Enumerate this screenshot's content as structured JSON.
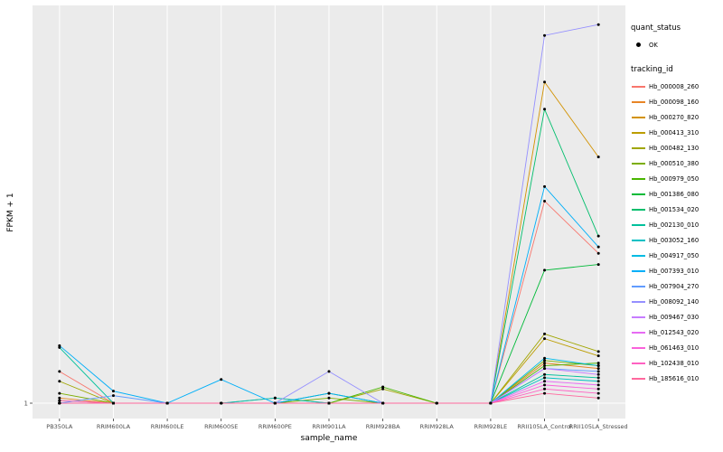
{
  "figure": {
    "background": "#FFFFFF",
    "panel_bg": "#EBEBEB",
    "grid_color": "#FFFFFF",
    "tick_color": "#333333",
    "tick_label_color": "#4D4D4D",
    "point_color": "#000000"
  },
  "axes": {
    "x_label": "sample_name",
    "y_label": "FPKM + 1"
  },
  "legend": {
    "quant_status_title": "quant_status",
    "ok_label": "OK",
    "ok_symbol_color": "#000000",
    "tracking_id_title": "tracking_id"
  },
  "chart_data": {
    "type": "line",
    "title": "",
    "xlabel": "sample_name",
    "ylabel": "FPKM + 1",
    "y_scale": "log10",
    "y_ticks": [
      1
    ],
    "ylim": [
      1,
      1200
    ],
    "grid": "vertical white gridlines per category on grey panel",
    "legend_position": "right",
    "quant_status_all_points": "OK",
    "categories": [
      "PB350LA",
      "RRIM600LA",
      "RRIM600LE",
      "RRIM600SE",
      "RRIM600PE",
      "RRIM901LA",
      "RRIM928BA",
      "RRIM928LA",
      "RRIM928LE",
      "RRII105LA_Control",
      "RRII105LA_Stressed"
    ],
    "series": [
      {
        "name": "Hb_000008_260",
        "color": "#F8766D",
        "values": [
          1.8,
          1,
          1,
          1,
          1,
          1,
          1,
          1,
          1,
          42,
          16
        ]
      },
      {
        "name": "Hb_000098_160",
        "color": "#E88526",
        "values": [
          1.1,
          1,
          1,
          1,
          1,
          1,
          1,
          1,
          1,
          2.1,
          1.9
        ]
      },
      {
        "name": "Hb_000270_820",
        "color": "#D39200",
        "values": [
          1,
          1,
          1,
          1,
          1,
          1,
          1,
          1,
          1,
          380,
          95
        ]
      },
      {
        "name": "Hb_000413_310",
        "color": "#BC9D00",
        "values": [
          1.05,
          1,
          1,
          1,
          1,
          1,
          1,
          1,
          1,
          3.3,
          2.4
        ]
      },
      {
        "name": "Hb_000482_130",
        "color": "#A0A600",
        "values": [
          1.5,
          1,
          1,
          1,
          1.1,
          1,
          1.3,
          1,
          1,
          3.6,
          2.6
        ]
      },
      {
        "name": "Hb_000510_380",
        "color": "#7CAE00",
        "values": [
          1.2,
          1,
          1,
          1,
          1,
          1.1,
          1,
          1,
          1,
          2.2,
          2.0
        ]
      },
      {
        "name": "Hb_000979_050",
        "color": "#49B500",
        "values": [
          1,
          1,
          1,
          1,
          1,
          1,
          1.35,
          1,
          1,
          2.0,
          2.1
        ]
      },
      {
        "name": "Hb_001386_080",
        "color": "#00BA38",
        "values": [
          1,
          1,
          1,
          1,
          1,
          1.2,
          1,
          1,
          1,
          11.7,
          13
        ]
      },
      {
        "name": "Hb_001534_020",
        "color": "#00BE6C",
        "values": [
          1,
          1,
          1,
          1,
          1,
          1,
          1,
          1,
          1,
          230,
          22
        ]
      },
      {
        "name": "Hb_002130_010",
        "color": "#00C19C",
        "values": [
          2.8,
          1,
          1,
          1,
          1,
          1,
          1,
          1,
          1,
          1.7,
          1.6
        ]
      },
      {
        "name": "Hb_003052_160",
        "color": "#00C0C4",
        "values": [
          1,
          1,
          1,
          1,
          1.1,
          1,
          1,
          1,
          1,
          1.6,
          1.5
        ]
      },
      {
        "name": "Hb_004917_050",
        "color": "#00BBE3",
        "values": [
          1,
          1,
          1,
          1,
          1,
          1,
          1,
          1,
          1,
          2.3,
          2.0
        ]
      },
      {
        "name": "Hb_007393_010",
        "color": "#00AFF8",
        "values": [
          2.9,
          1.25,
          1,
          1.55,
          1,
          1.2,
          1,
          1,
          1,
          55,
          18
        ]
      },
      {
        "name": "Hb_007904_270",
        "color": "#619CFF",
        "values": [
          1,
          1.15,
          1,
          1,
          1,
          1,
          1,
          1,
          1,
          1.9,
          1.8
        ]
      },
      {
        "name": "Hb_008092_140",
        "color": "#9590FF",
        "values": [
          1,
          1,
          1,
          1,
          1,
          1.8,
          1,
          1,
          1,
          900,
          1100
        ]
      },
      {
        "name": "Hb_009467_030",
        "color": "#C77CFF",
        "values": [
          1,
          1,
          1,
          1,
          1,
          1,
          1,
          1,
          1,
          1.9,
          1.7
        ]
      },
      {
        "name": "Hb_012543_020",
        "color": "#E76BF3",
        "values": [
          1,
          1,
          1,
          1,
          1,
          1,
          1,
          1,
          1,
          1.5,
          1.4
        ]
      },
      {
        "name": "Hb_061463_010",
        "color": "#FA62DB",
        "values": [
          1,
          1,
          1,
          1,
          1,
          1,
          1,
          1,
          1,
          1.4,
          1.3
        ]
      },
      {
        "name": "Hb_102438_010",
        "color": "#FF61C2",
        "values": [
          1.05,
          1,
          1,
          1,
          1,
          1,
          1,
          1,
          1,
          1.3,
          1.2
        ]
      },
      {
        "name": "Hb_185616_010",
        "color": "#FF689E",
        "values": [
          1,
          1,
          1,
          1,
          1,
          1,
          1,
          1,
          1,
          1.2,
          1.1
        ]
      }
    ]
  }
}
